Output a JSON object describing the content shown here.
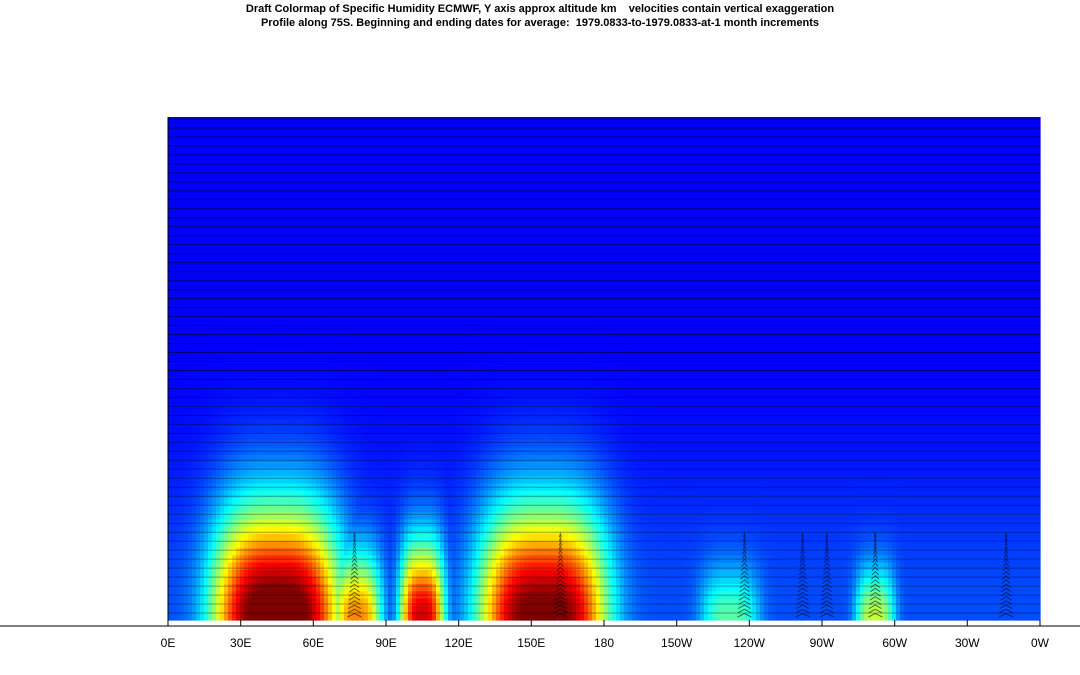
{
  "chart_data": {
    "type": "heatmap",
    "title": "Draft Colormap of Specific Humidity ECMWF, Y axis approx altitude km    velocities contain vertical exaggeration",
    "subtitle": "Profile along 75S. Beginning and ending dates for average:  1979.0833-to-1979.0833-at-1 month increments",
    "xlabel": "",
    "ylabel": "",
    "x_tick_labels": [
      "0E",
      "30E",
      "60E",
      "90E",
      "120E",
      "150E",
      "180",
      "150W",
      "120W",
      "90W",
      "60W",
      "30W",
      "0W"
    ],
    "x_ticks_deg_east": [
      0,
      30,
      60,
      90,
      120,
      150,
      180,
      210,
      240,
      270,
      300,
      330,
      360
    ],
    "xlim": [
      0,
      360
    ],
    "colormap": "jet",
    "background_color": "#00008f",
    "humidity_blobs": [
      {
        "center_lon": 45,
        "half_width_deg": 26,
        "top_fraction": 0.22,
        "peak": 1.0
      },
      {
        "center_lon": 78,
        "half_width_deg": 10,
        "top_fraction": 0.13,
        "peak": 0.62
      },
      {
        "center_lon": 105,
        "half_width_deg": 9,
        "top_fraction": 0.15,
        "peak": 0.82
      },
      {
        "center_lon": 155,
        "half_width_deg": 26,
        "top_fraction": 0.22,
        "peak": 0.95
      },
      {
        "center_lon": 232,
        "half_width_deg": 12,
        "top_fraction": 0.1,
        "peak": 0.3
      },
      {
        "center_lon": 292,
        "half_width_deg": 8,
        "top_fraction": 0.1,
        "peak": 0.42
      }
    ],
    "velocity_arrow_columns_lon": [
      77,
      162,
      238,
      262,
      272,
      292,
      346
    ]
  }
}
